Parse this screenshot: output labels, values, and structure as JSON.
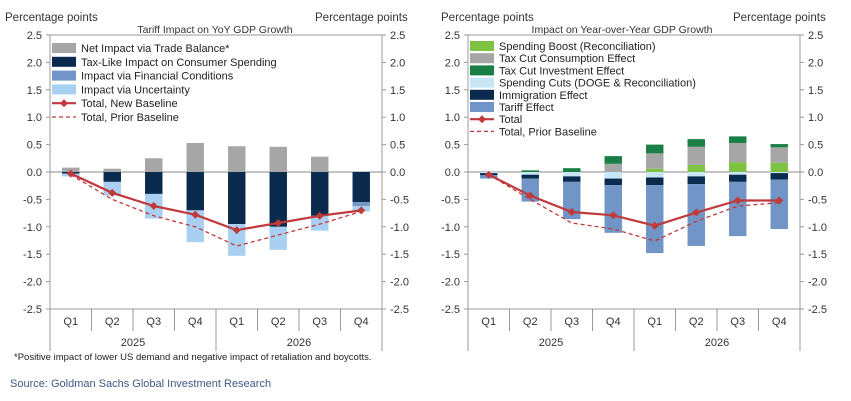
{
  "footnote": "*Positive impact of lower US demand and negative impact of retaliation and boycotts.",
  "source": "Source: Goldman Sachs Global Investment Research",
  "chart_data": [
    {
      "type": "bar",
      "stacked": true,
      "title": "Tariff  Impact on YoY GDP Growth",
      "ylabel_left": "Percentage points",
      "ylabel_right": "Percentage points",
      "categories": [
        "Q1",
        "Q2",
        "Q3",
        "Q4",
        "Q1",
        "Q2",
        "Q3",
        "Q4"
      ],
      "year_groups": [
        {
          "label": "2025",
          "span": [
            0,
            3
          ]
        },
        {
          "label": "2026",
          "span": [
            4,
            7
          ]
        }
      ],
      "ylim": [
        -2.5,
        2.5
      ],
      "yticks": [
        -2.5,
        -2.0,
        -1.5,
        -1.0,
        -0.5,
        0.0,
        0.5,
        1.0,
        1.5,
        2.0,
        2.5
      ],
      "legend_position": "top-left",
      "series": [
        {
          "name": "Net Impact via Trade Balance*",
          "kind": "bar",
          "color": "#a6a6a6",
          "values": [
            0.08,
            0.06,
            0.25,
            0.53,
            0.47,
            0.46,
            0.28,
            0.0
          ]
        },
        {
          "name": "Tax-Like Impact on Consumer Spending",
          "kind": "bar",
          "color": "#0a2b4d",
          "values": [
            -0.03,
            -0.18,
            -0.4,
            -0.7,
            -0.95,
            -1.0,
            -0.8,
            -0.55
          ]
        },
        {
          "name": "Impact via Financial Conditions",
          "kind": "bar",
          "color": "#7195c6",
          "values": [
            0.0,
            0.0,
            0.0,
            0.0,
            0.0,
            0.0,
            0.0,
            -0.07
          ]
        },
        {
          "name": "Impact via Uncertainty",
          "kind": "bar",
          "color": "#a9d0f0",
          "values": [
            -0.05,
            -0.25,
            -0.45,
            -0.58,
            -0.58,
            -0.42,
            -0.27,
            -0.1
          ]
        },
        {
          "name": "Total, New Baseline",
          "kind": "line-marker",
          "color": "#c0393b",
          "values": [
            -0.03,
            -0.38,
            -0.62,
            -0.78,
            -1.06,
            -0.93,
            -0.8,
            -0.7
          ]
        },
        {
          "name": "Total, Prior Baseline",
          "kind": "dashed-line",
          "color": "#c0393b",
          "values": [
            -0.05,
            -0.5,
            -0.8,
            -1.0,
            -1.35,
            -1.15,
            -0.95,
            -0.72
          ]
        }
      ]
    },
    {
      "type": "bar",
      "stacked": true,
      "title": "Impact on Year-over-Year  GDP Growth",
      "ylabel_left": "Percentage points",
      "ylabel_right": "Percentage points",
      "categories": [
        "Q1",
        "Q2",
        "Q3",
        "Q4",
        "Q1",
        "Q2",
        "Q3",
        "Q4"
      ],
      "year_groups": [
        {
          "label": "2025",
          "span": [
            0,
            3
          ]
        },
        {
          "label": "2026",
          "span": [
            4,
            7
          ]
        }
      ],
      "ylim": [
        -2.5,
        2.5
      ],
      "yticks": [
        -2.5,
        -2.0,
        -1.5,
        -1.0,
        -0.5,
        0.0,
        0.5,
        1.0,
        1.5,
        2.0,
        2.5
      ],
      "legend_position": "top-left",
      "series": [
        {
          "name": "Spending Boost (Reconciliation)",
          "kind": "bar",
          "color": "#7dc242",
          "values": [
            0.0,
            0.0,
            0.0,
            0.0,
            0.06,
            0.13,
            0.18,
            0.17
          ]
        },
        {
          "name": "Tax Cut Consumption  Effect",
          "kind": "bar",
          "color": "#a6a6a6",
          "values": [
            0.0,
            0.0,
            0.0,
            0.15,
            0.28,
            0.33,
            0.35,
            0.28
          ]
        },
        {
          "name": "Tax Cut Investment Effect",
          "kind": "bar",
          "color": "#1a7f45",
          "values": [
            0.0,
            0.03,
            0.07,
            0.14,
            0.16,
            0.14,
            0.12,
            0.06
          ]
        },
        {
          "name": "Spending Cuts (DOGE & Reconciliation)",
          "kind": "bar",
          "color": "#c8e6f6",
          "values": [
            -0.02,
            -0.05,
            -0.08,
            -0.12,
            -0.1,
            -0.08,
            -0.05,
            -0.02
          ]
        },
        {
          "name": "Immigration Effect",
          "kind": "bar",
          "color": "#0a2b4d",
          "values": [
            -0.04,
            -0.07,
            -0.1,
            -0.12,
            -0.14,
            -0.14,
            -0.13,
            -0.12
          ]
        },
        {
          "name": "Tariff Effect",
          "kind": "bar",
          "color": "#7195c6",
          "values": [
            -0.06,
            -0.42,
            -0.68,
            -0.87,
            -1.24,
            -1.13,
            -0.99,
            -0.9
          ]
        },
        {
          "name": "Total",
          "kind": "line-marker",
          "color": "#c0393b",
          "values": [
            -0.05,
            -0.43,
            -0.73,
            -0.79,
            -0.98,
            -0.74,
            -0.52,
            -0.52
          ]
        },
        {
          "name": "Total, Prior Baseline",
          "kind": "dashed-line",
          "color": "#c0393b",
          "values": [
            -0.05,
            -0.5,
            -0.93,
            -1.04,
            -1.26,
            -0.9,
            -0.62,
            -0.56
          ]
        }
      ]
    }
  ]
}
